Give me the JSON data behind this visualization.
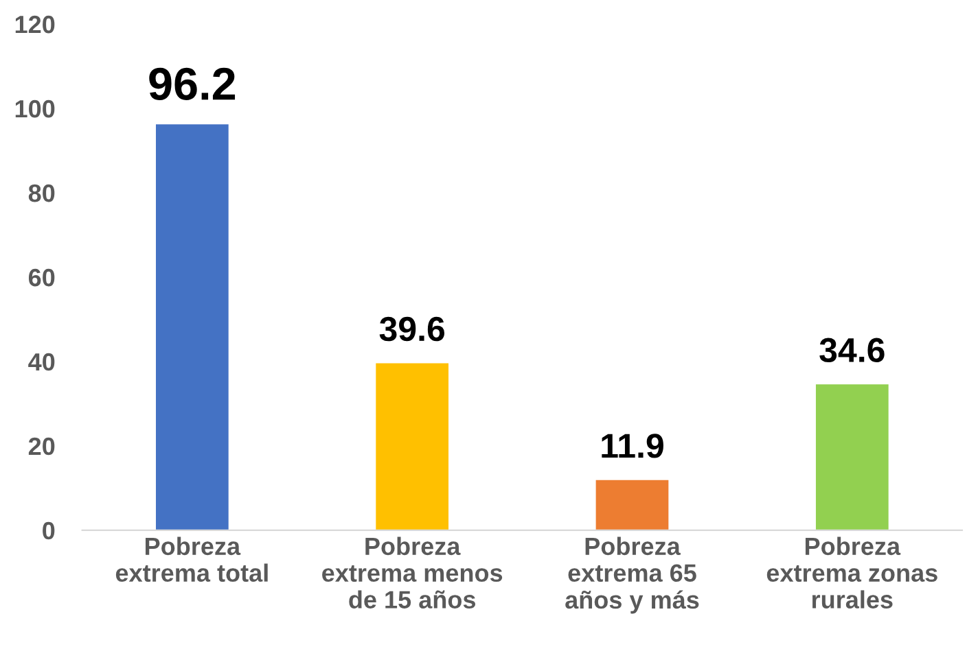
{
  "chart_data": {
    "type": "bar",
    "categories": [
      "Pobreza\nextrema total",
      "Pobreza\nextrema menos\nde 15 años",
      "Pobreza\nextrema 65\naños y más",
      "Pobreza\nextrema zonas\nrurales"
    ],
    "values": [
      96.2,
      39.6,
      11.9,
      34.6
    ],
    "colors": [
      "#4472c4",
      "#ffc000",
      "#ed7d31",
      "#92d050"
    ],
    "ylim": [
      0,
      120
    ],
    "yticks": [
      0,
      20,
      40,
      60,
      80,
      100,
      120
    ],
    "grid": false,
    "legend": false,
    "data_labels": true
  }
}
